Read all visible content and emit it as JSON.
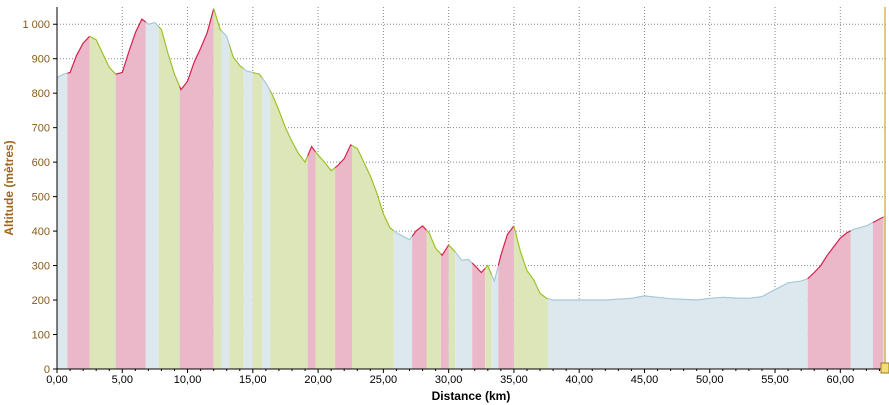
{
  "chart_data": {
    "type": "area",
    "xlabel": "Distance (km)",
    "ylabel": "Altitude (mètres)",
    "xlim": [
      0,
      63.5
    ],
    "ylim": [
      0,
      1050
    ],
    "x_ticks": [
      "0,00",
      "5,00",
      "10,00",
      "15,00",
      "20,00",
      "25,00",
      "30,00",
      "35,00",
      "40,00",
      "45,00",
      "50,00",
      "55,00",
      "60,00"
    ],
    "x_tick_values": [
      0,
      5,
      10,
      15,
      20,
      25,
      30,
      35,
      40,
      45,
      50,
      55,
      60
    ],
    "y_ticks": [
      "0",
      "100",
      "200",
      "300",
      "400",
      "500",
      "600",
      "700",
      "800",
      "900",
      "1 000"
    ],
    "y_tick_values": [
      0,
      100,
      200,
      300,
      400,
      500,
      600,
      700,
      800,
      900,
      1000
    ],
    "grid": true,
    "profile": [
      [
        0.0,
        845
      ],
      [
        0.5,
        855
      ],
      [
        1.0,
        860
      ],
      [
        1.5,
        910
      ],
      [
        2.0,
        945
      ],
      [
        2.5,
        965
      ],
      [
        3.0,
        955
      ],
      [
        3.5,
        915
      ],
      [
        4.0,
        875
      ],
      [
        4.5,
        855
      ],
      [
        5.0,
        860
      ],
      [
        5.5,
        920
      ],
      [
        6.0,
        975
      ],
      [
        6.5,
        1015
      ],
      [
        7.0,
        1000
      ],
      [
        7.5,
        1005
      ],
      [
        8.0,
        985
      ],
      [
        8.5,
        915
      ],
      [
        9.0,
        855
      ],
      [
        9.5,
        810
      ],
      [
        10.0,
        835
      ],
      [
        10.5,
        890
      ],
      [
        11.0,
        930
      ],
      [
        11.5,
        975
      ],
      [
        12.0,
        1045
      ],
      [
        12.5,
        985
      ],
      [
        13.0,
        965
      ],
      [
        13.5,
        905
      ],
      [
        14.0,
        880
      ],
      [
        14.5,
        865
      ],
      [
        15.0,
        860
      ],
      [
        15.5,
        855
      ],
      [
        16.0,
        830
      ],
      [
        16.5,
        795
      ],
      [
        17.0,
        750
      ],
      [
        17.5,
        700
      ],
      [
        18.0,
        660
      ],
      [
        18.5,
        625
      ],
      [
        19.0,
        600
      ],
      [
        19.5,
        645
      ],
      [
        20.0,
        620
      ],
      [
        20.5,
        600
      ],
      [
        21.0,
        575
      ],
      [
        21.5,
        590
      ],
      [
        22.0,
        610
      ],
      [
        22.5,
        650
      ],
      [
        23.0,
        640
      ],
      [
        23.5,
        600
      ],
      [
        24.0,
        560
      ],
      [
        24.5,
        510
      ],
      [
        25.0,
        450
      ],
      [
        25.5,
        410
      ],
      [
        26.0,
        395
      ],
      [
        26.5,
        385
      ],
      [
        27.0,
        375
      ],
      [
        27.5,
        400
      ],
      [
        28.0,
        415
      ],
      [
        28.5,
        395
      ],
      [
        29.0,
        350
      ],
      [
        29.5,
        330
      ],
      [
        30.0,
        360
      ],
      [
        30.5,
        340
      ],
      [
        31.0,
        315
      ],
      [
        31.5,
        318
      ],
      [
        32.0,
        300
      ],
      [
        32.5,
        280
      ],
      [
        33.0,
        300
      ],
      [
        33.5,
        255
      ],
      [
        34.0,
        330
      ],
      [
        34.5,
        390
      ],
      [
        35.0,
        415
      ],
      [
        35.5,
        340
      ],
      [
        36.0,
        285
      ],
      [
        36.5,
        260
      ],
      [
        37.0,
        220
      ],
      [
        37.5,
        205
      ],
      [
        38.0,
        200
      ],
      [
        40.0,
        200
      ],
      [
        42.0,
        200
      ],
      [
        44.0,
        205
      ],
      [
        45.0,
        212
      ],
      [
        46.0,
        208
      ],
      [
        47.0,
        204
      ],
      [
        48.0,
        202
      ],
      [
        49.0,
        200
      ],
      [
        50.0,
        205
      ],
      [
        51.0,
        208
      ],
      [
        52.0,
        206
      ],
      [
        53.0,
        205
      ],
      [
        54.0,
        210
      ],
      [
        55.0,
        230
      ],
      [
        56.0,
        250
      ],
      [
        57.0,
        255
      ],
      [
        57.5,
        262
      ],
      [
        58.0,
        280
      ],
      [
        58.5,
        300
      ],
      [
        59.0,
        330
      ],
      [
        59.5,
        355
      ],
      [
        60.0,
        380
      ],
      [
        60.5,
        395
      ],
      [
        61.0,
        405
      ],
      [
        62.0,
        415
      ],
      [
        63.0,
        435
      ],
      [
        63.5,
        445
      ]
    ],
    "segments": [
      {
        "from": 0.0,
        "to": 0.8,
        "kind": "flat"
      },
      {
        "from": 0.8,
        "to": 2.5,
        "kind": "climb"
      },
      {
        "from": 2.5,
        "to": 4.5,
        "kind": "descent"
      },
      {
        "from": 4.5,
        "to": 6.8,
        "kind": "climb"
      },
      {
        "from": 6.8,
        "to": 7.8,
        "kind": "flat"
      },
      {
        "from": 7.8,
        "to": 9.4,
        "kind": "descent"
      },
      {
        "from": 9.4,
        "to": 12.0,
        "kind": "climb"
      },
      {
        "from": 12.0,
        "to": 12.6,
        "kind": "descent"
      },
      {
        "from": 12.6,
        "to": 13.2,
        "kind": "flat"
      },
      {
        "from": 13.2,
        "to": 14.3,
        "kind": "descent"
      },
      {
        "from": 14.3,
        "to": 15.0,
        "kind": "flat"
      },
      {
        "from": 15.0,
        "to": 15.7,
        "kind": "descent"
      },
      {
        "from": 15.7,
        "to": 16.3,
        "kind": "flat"
      },
      {
        "from": 16.3,
        "to": 19.2,
        "kind": "descent"
      },
      {
        "from": 19.2,
        "to": 19.8,
        "kind": "climb"
      },
      {
        "from": 19.8,
        "to": 21.3,
        "kind": "descent"
      },
      {
        "from": 21.3,
        "to": 22.6,
        "kind": "climb"
      },
      {
        "from": 22.6,
        "to": 25.8,
        "kind": "descent"
      },
      {
        "from": 25.8,
        "to": 27.2,
        "kind": "flat"
      },
      {
        "from": 27.2,
        "to": 28.3,
        "kind": "climb"
      },
      {
        "from": 28.3,
        "to": 29.4,
        "kind": "descent"
      },
      {
        "from": 29.4,
        "to": 30.0,
        "kind": "climb"
      },
      {
        "from": 30.0,
        "to": 30.5,
        "kind": "descent"
      },
      {
        "from": 30.5,
        "to": 31.8,
        "kind": "flat"
      },
      {
        "from": 31.8,
        "to": 32.8,
        "kind": "climb"
      },
      {
        "from": 32.8,
        "to": 33.3,
        "kind": "descent"
      },
      {
        "from": 33.3,
        "to": 33.8,
        "kind": "flat"
      },
      {
        "from": 33.8,
        "to": 35.0,
        "kind": "climb"
      },
      {
        "from": 35.0,
        "to": 37.6,
        "kind": "descent"
      },
      {
        "from": 37.6,
        "to": 57.5,
        "kind": "flat"
      },
      {
        "from": 57.5,
        "to": 60.8,
        "kind": "climb"
      },
      {
        "from": 60.8,
        "to": 62.5,
        "kind": "flat"
      },
      {
        "from": 62.5,
        "to": 63.3,
        "kind": "climb"
      },
      {
        "from": 63.3,
        "to": 63.5,
        "kind": "flat"
      }
    ],
    "colors": {
      "climb_fill": "#eab8c8",
      "climb_line": "#d8204e",
      "descent_fill": "#dce6b8",
      "descent_line": "#9bc22a",
      "flat_fill": "#dde8ee",
      "flat_line": "#a8c8d8",
      "grid": "#888888",
      "axis_label": "#a0661c",
      "cursor": "#d8b84a"
    }
  }
}
